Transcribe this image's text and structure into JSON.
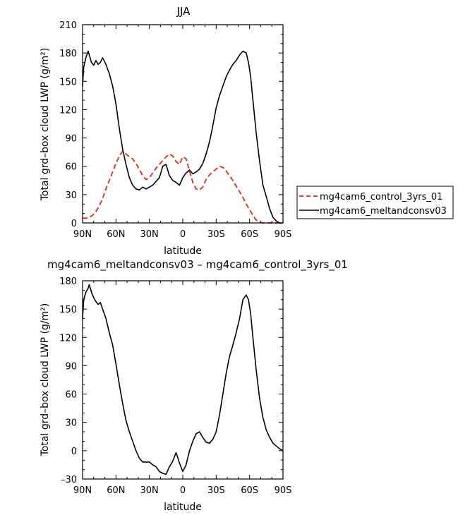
{
  "chart_data": [
    {
      "type": "line",
      "title": "JJA",
      "xlabel": "latitude",
      "ylabel": "Total grd–box cloud LWP (g/m²)",
      "xlim": [
        90,
        -90
      ],
      "ylim": [
        0,
        210
      ],
      "xticks": [
        90,
        60,
        30,
        0,
        -30,
        -60,
        -90
      ],
      "xtick_labels": [
        "90N",
        "60N",
        "30N",
        "0",
        "30S",
        "60S",
        "90S"
      ],
      "yticks": [
        0,
        30,
        60,
        90,
        120,
        150,
        180,
        210
      ],
      "ytick_labels": [
        "0",
        "30",
        "60",
        "90",
        "120",
        "150",
        "180",
        "210"
      ],
      "legend_position": "right",
      "series": [
        {
          "name": "mg4cam6_control_3yrs_01",
          "color": "#e8261c",
          "dash": "dashed",
          "x": [
            90,
            87,
            84,
            81,
            78,
            75,
            72,
            69,
            66,
            63,
            60,
            57,
            54,
            51,
            48,
            45,
            42,
            39,
            36,
            33,
            30,
            27,
            24,
            21,
            18,
            15,
            12,
            9,
            6,
            3,
            0,
            -3,
            -6,
            -9,
            -12,
            -15,
            -18,
            -21,
            -24,
            -27,
            -30,
            -33,
            -36,
            -39,
            -42,
            -45,
            -48,
            -51,
            -54,
            -57,
            -60,
            -63,
            -66,
            -69,
            -72,
            -75,
            -78,
            -81,
            -84,
            -87,
            -90
          ],
          "values": [
            5,
            5,
            6,
            8,
            12,
            18,
            26,
            36,
            45,
            54,
            63,
            71,
            76,
            73,
            70,
            68,
            63,
            57,
            50,
            46,
            48,
            53,
            58,
            62,
            66,
            70,
            73,
            71,
            65,
            62,
            70,
            68,
            55,
            43,
            36,
            35,
            38,
            46,
            51,
            54,
            57,
            60,
            59,
            55,
            50,
            45,
            39,
            33,
            27,
            20,
            14,
            8,
            3,
            1,
            0,
            0,
            0,
            0,
            0,
            0,
            0
          ]
        },
        {
          "name": "mg4cam6_meltandconsv03",
          "color": "#000000",
          "dash": "solid",
          "x": [
            90,
            89,
            87,
            85,
            84,
            82,
            80,
            78,
            76,
            74,
            72,
            69,
            66,
            63,
            60,
            57,
            54,
            51,
            48,
            45,
            42,
            39,
            36,
            33,
            30,
            27,
            24,
            21,
            18,
            15,
            12,
            9,
            6,
            3,
            0,
            -3,
            -6,
            -9,
            -12,
            -15,
            -18,
            -21,
            -24,
            -27,
            -30,
            -33,
            -36,
            -39,
            -42,
            -45,
            -48,
            -51,
            -54,
            -57,
            -59,
            -61,
            -63,
            -66,
            -69,
            -72,
            -75,
            -78,
            -81,
            -84,
            -87,
            -90
          ],
          "values": [
            145,
            165,
            175,
            182,
            178,
            170,
            167,
            172,
            168,
            170,
            175,
            168,
            158,
            145,
            126,
            100,
            78,
            62,
            48,
            40,
            36,
            35,
            38,
            36,
            38,
            40,
            44,
            48,
            60,
            62,
            50,
            45,
            43,
            40,
            48,
            53,
            56,
            52,
            54,
            57,
            63,
            73,
            86,
            103,
            122,
            135,
            145,
            155,
            162,
            168,
            172,
            178,
            182,
            180,
            170,
            155,
            130,
            95,
            65,
            40,
            28,
            15,
            6,
            2,
            0,
            0
          ]
        }
      ]
    },
    {
      "type": "line",
      "title": "mg4cam6_meltandconsv03 – mg4cam6_control_3yrs_01",
      "xlabel": "latitude",
      "ylabel": "Total grd–box cloud LWP (g/m²)",
      "xlim": [
        90,
        -90
      ],
      "ylim": [
        -30,
        180
      ],
      "xticks": [
        90,
        60,
        30,
        0,
        -30,
        -60,
        -90
      ],
      "xtick_labels": [
        "90N",
        "60N",
        "30N",
        "0",
        "30S",
        "60S",
        "90S"
      ],
      "yticks": [
        -30,
        0,
        30,
        60,
        90,
        120,
        150,
        180
      ],
      "ytick_labels": [
        "–30",
        "0",
        "30",
        "60",
        "90",
        "120",
        "150",
        "180"
      ],
      "series": [
        {
          "color": "#000000",
          "dash": "solid",
          "x": [
            90,
            89,
            87,
            85,
            84,
            82,
            80,
            78,
            76,
            74,
            72,
            69,
            66,
            63,
            60,
            57,
            54,
            51,
            48,
            45,
            42,
            39,
            36,
            33,
            30,
            27,
            24,
            21,
            18,
            15,
            12,
            9,
            6,
            3,
            0,
            -3,
            -6,
            -9,
            -12,
            -15,
            -18,
            -21,
            -24,
            -27,
            -30,
            -33,
            -36,
            -39,
            -42,
            -45,
            -48,
            -51,
            -54,
            -57,
            -59,
            -61,
            -63,
            -66,
            -69,
            -72,
            -75,
            -78,
            -81,
            -84,
            -87,
            -90
          ],
          "values": [
            140,
            160,
            168,
            172,
            176,
            168,
            162,
            158,
            155,
            157,
            150,
            140,
            125,
            112,
            92,
            70,
            50,
            32,
            20,
            10,
            0,
            -8,
            -12,
            -12,
            -12,
            -15,
            -17,
            -22,
            -24,
            -25,
            -17,
            -11,
            -2,
            -13,
            -22,
            -15,
            0,
            10,
            18,
            20,
            14,
            9,
            8,
            12,
            20,
            38,
            60,
            82,
            100,
            112,
            125,
            140,
            160,
            165,
            160,
            145,
            120,
            85,
            55,
            35,
            22,
            14,
            8,
            5,
            2,
            0
          ]
        }
      ]
    }
  ]
}
